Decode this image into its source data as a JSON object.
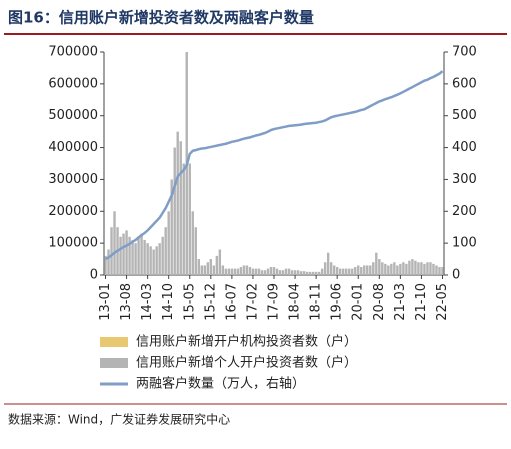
{
  "chart_data": {
    "type": "bar",
    "title": "图16：信用账户新增投资者数及两融客户数量",
    "source": "数据来源：Wind，广发证券发展研究中心",
    "categories": [
      "13-01",
      null,
      null,
      null,
      null,
      null,
      null,
      "13-08",
      null,
      null,
      null,
      null,
      null,
      null,
      "14-03",
      null,
      null,
      null,
      null,
      null,
      null,
      "14-10",
      null,
      null,
      null,
      null,
      null,
      null,
      "15-05",
      null,
      null,
      null,
      null,
      null,
      null,
      "15-12",
      null,
      null,
      null,
      null,
      null,
      null,
      "16-07",
      null,
      null,
      null,
      null,
      null,
      null,
      "17-02",
      null,
      null,
      null,
      null,
      null,
      null,
      "17-09",
      null,
      null,
      null,
      null,
      null,
      null,
      "18-04",
      null,
      null,
      null,
      null,
      null,
      null,
      "18-11",
      null,
      null,
      null,
      null,
      null,
      null,
      "19-06",
      null,
      null,
      null,
      null,
      null,
      null,
      "20-01",
      null,
      null,
      null,
      null,
      null,
      null,
      "20-08",
      null,
      null,
      null,
      null,
      null,
      null,
      "21-03",
      null,
      null,
      null,
      null,
      null,
      null,
      "21-10",
      null,
      null,
      null,
      null,
      null,
      null,
      "22-05"
    ],
    "series": [
      {
        "name": "信用账户新增开户机构投资者数（户）",
        "color": "#e8c870",
        "values": [
          200,
          200,
          300,
          300,
          300,
          200,
          200,
          200,
          200,
          200,
          200,
          200,
          200,
          200,
          200,
          200,
          200,
          200,
          200,
          200,
          300,
          300,
          400,
          500,
          500,
          500,
          400,
          600,
          400,
          300,
          200,
          200,
          200,
          200,
          200,
          200,
          200,
          200,
          200,
          200,
          200,
          200,
          200,
          200,
          200,
          200,
          200,
          200,
          200,
          200,
          200,
          200,
          200,
          200,
          200,
          200,
          200,
          200,
          200,
          200,
          200,
          200,
          200,
          200,
          200,
          200,
          200,
          200,
          200,
          200,
          200,
          200,
          200,
          200,
          300,
          300,
          300,
          200,
          200,
          200,
          200,
          200,
          200,
          200,
          200,
          200,
          200,
          200,
          200,
          200,
          300,
          300,
          300,
          300,
          200,
          200,
          200,
          200,
          200,
          200,
          200,
          200,
          200,
          200,
          200,
          200,
          200,
          200,
          200,
          200,
          200,
          200,
          200
        ]
      },
      {
        "name": "信用账户新增个人开户投资者数（户）",
        "color": "#b4b4b4",
        "values": [
          60000,
          80000,
          150000,
          200000,
          150000,
          120000,
          130000,
          140000,
          120000,
          110000,
          100000,
          120000,
          130000,
          110000,
          100000,
          90000,
          80000,
          90000,
          100000,
          120000,
          150000,
          200000,
          300000,
          400000,
          450000,
          420000,
          350000,
          700000,
          350000,
          200000,
          150000,
          50000,
          30000,
          30000,
          40000,
          50000,
          30000,
          60000,
          80000,
          30000,
          20000,
          20000,
          20000,
          20000,
          20000,
          25000,
          30000,
          30000,
          25000,
          20000,
          20000,
          20000,
          15000,
          15000,
          20000,
          25000,
          25000,
          20000,
          15000,
          15000,
          20000,
          20000,
          15000,
          15000,
          15000,
          12000,
          12000,
          10000,
          10000,
          10000,
          10000,
          10000,
          20000,
          40000,
          70000,
          40000,
          30000,
          25000,
          20000,
          20000,
          20000,
          20000,
          20000,
          25000,
          30000,
          25000,
          30000,
          30000,
          30000,
          40000,
          70000,
          50000,
          40000,
          35000,
          30000,
          35000,
          40000,
          30000,
          35000,
          40000,
          35000,
          45000,
          50000,
          45000,
          40000,
          40000,
          35000,
          40000,
          40000,
          35000,
          30000,
          25000,
          25000
        ]
      },
      {
        "name": "两融客户数量（万人，右轴）",
        "color": "#7f9dc6",
        "axis": "y2",
        "values": [
          50,
          55,
          62,
          70,
          76,
          82,
          88,
          92,
          98,
          104,
          110,
          118,
          125,
          132,
          140,
          150,
          160,
          170,
          180,
          195,
          210,
          230,
          250,
          280,
          310,
          320,
          330,
          345,
          380,
          390,
          392,
          395,
          397,
          398,
          400,
          402,
          404,
          406,
          408,
          410,
          412,
          415,
          418,
          420,
          422,
          425,
          428,
          430,
          432,
          435,
          438,
          440,
          443,
          446,
          450,
          455,
          458,
          460,
          462,
          464,
          466,
          468,
          469,
          470,
          471,
          472,
          474,
          475,
          476,
          477,
          478,
          480,
          482,
          485,
          490,
          495,
          498,
          500,
          502,
          504,
          506,
          508,
          510,
          512,
          515,
          518,
          520,
          525,
          530,
          535,
          540,
          545,
          548,
          552,
          555,
          558,
          562,
          566,
          570,
          575,
          580,
          585,
          590,
          595,
          600,
          605,
          610,
          613,
          618,
          622,
          627,
          632,
          640
        ]
      }
    ],
    "ylim": [
      0,
      700000
    ],
    "yticks": [
      0,
      100000,
      200000,
      300000,
      400000,
      500000,
      600000,
      700000
    ],
    "y2lim": [
      0,
      700
    ],
    "y2ticks": [
      0,
      100,
      200,
      300,
      400,
      500,
      600,
      700
    ]
  }
}
